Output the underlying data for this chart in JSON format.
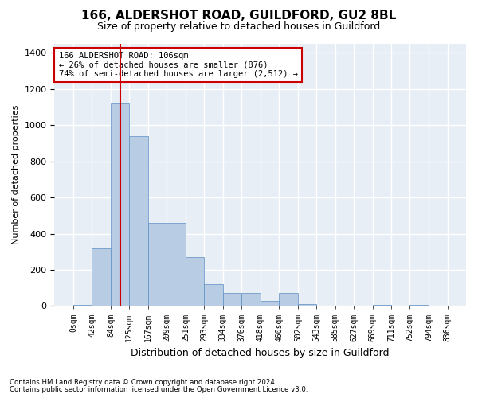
{
  "title": "166, ALDERSHOT ROAD, GUILDFORD, GU2 8BL",
  "subtitle": "Size of property relative to detached houses in Guildford",
  "xlabel": "Distribution of detached houses by size in Guildford",
  "ylabel": "Number of detached properties",
  "footnote1": "Contains HM Land Registry data © Crown copyright and database right 2024.",
  "footnote2": "Contains public sector information licensed under the Open Government Licence v3.0.",
  "annotation_line1": "166 ALDERSHOT ROAD: 106sqm",
  "annotation_line2": "← 26% of detached houses are smaller (876)",
  "annotation_line3": "74% of semi-detached houses are larger (2,512) →",
  "bar_color": "#b8cce4",
  "bar_edge_color": "#5b8ec4",
  "vline_color": "#cc0000",
  "background_color": "#e8eef6",
  "grid_color": "#ffffff",
  "bin_labels": [
    "0sqm",
    "42sqm",
    "84sqm",
    "125sqm",
    "167sqm",
    "209sqm",
    "251sqm",
    "293sqm",
    "334sqm",
    "376sqm",
    "418sqm",
    "460sqm",
    "502sqm",
    "543sqm",
    "585sqm",
    "627sqm",
    "669sqm",
    "711sqm",
    "752sqm",
    "794sqm",
    "836sqm"
  ],
  "bar_values": [
    5,
    320,
    1120,
    940,
    460,
    460,
    270,
    120,
    70,
    70,
    30,
    70,
    10,
    0,
    0,
    0,
    5,
    0,
    5,
    0
  ],
  "vline_x": 106,
  "ylim": [
    0,
    1450
  ],
  "yticks": [
    0,
    200,
    400,
    600,
    800,
    1000,
    1200,
    1400
  ],
  "bin_edges": [
    0,
    42,
    84,
    125,
    167,
    209,
    251,
    293,
    334,
    376,
    418,
    460,
    502,
    543,
    585,
    627,
    669,
    711,
    752,
    794,
    836
  ]
}
